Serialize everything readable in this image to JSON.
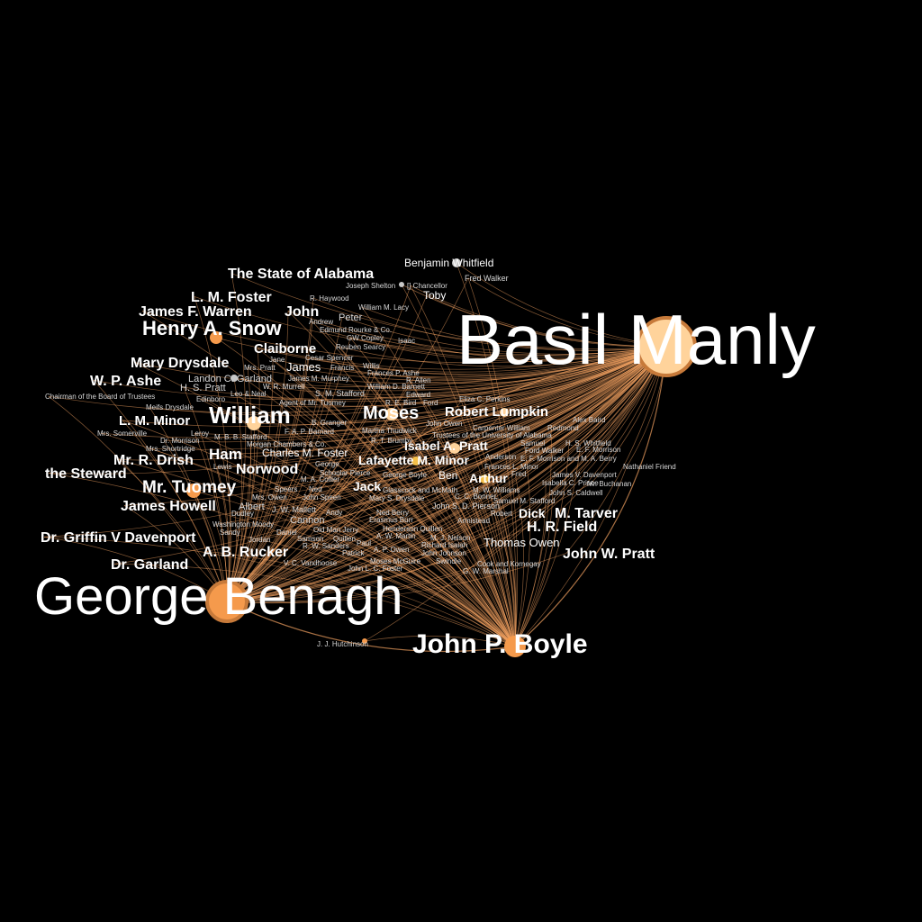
{
  "graph": {
    "colors": {
      "background": "#000000",
      "edge": "#f0a060",
      "node_orange": "#f59a4c",
      "node_peach": "#ffd39b",
      "node_gold": "#f5c04a",
      "node_gray": "#c8c8c8",
      "label": "#ffffff"
    },
    "hubs": [
      {
        "id": "basil_manly",
        "label": "Basil Manly"
      },
      {
        "id": "george_benagh",
        "label": "George Benagh"
      },
      {
        "id": "john_p_boyle",
        "label": "John P. Boyle"
      }
    ],
    "nodes": [
      {
        "id": "basil_manly",
        "label": "Basil Manly"
      },
      {
        "id": "george_benagh",
        "label": "George Benagh"
      },
      {
        "id": "john_p_boyle",
        "label": "John P. Boyle"
      },
      {
        "id": "william",
        "label": "William"
      },
      {
        "id": "henry_a_snow",
        "label": "Henry A. Snow"
      },
      {
        "id": "moses",
        "label": "Moses"
      },
      {
        "id": "robert_lumpkin",
        "label": "Robert Lumpkin"
      },
      {
        "id": "isabel_a_pratt",
        "label": "Isabel A. Pratt"
      },
      {
        "id": "mr_tuomey",
        "label": "Mr. Tuomey"
      },
      {
        "id": "james_howell",
        "label": "James Howell"
      },
      {
        "id": "the_steward",
        "label": "the Steward"
      },
      {
        "id": "mr_r_drish",
        "label": "Mr. R. Drish"
      },
      {
        "id": "ham",
        "label": "Ham"
      },
      {
        "id": "norwood",
        "label": "Norwood"
      },
      {
        "id": "l_m_minor",
        "label": "L. M. Minor"
      },
      {
        "id": "w_p_ashe",
        "label": "W. P. Ashe"
      },
      {
        "id": "mary_drysdale",
        "label": "Mary Drysdale"
      },
      {
        "id": "claiborne",
        "label": "Claiborne"
      },
      {
        "id": "l_m_foster",
        "label": "L. M. Foster"
      },
      {
        "id": "james_f_warren",
        "label": "James F. Warren"
      },
      {
        "id": "john",
        "label": "John"
      },
      {
        "id": "state_of_alabama",
        "label": "The State of Alabama"
      },
      {
        "id": "benjamin_whitfield",
        "label": "Benjamin Whitfield"
      },
      {
        "id": "fred_walker",
        "label": "Fred Walker"
      },
      {
        "id": "toby",
        "label": "Toby"
      },
      {
        "id": "joseph_shelton",
        "label": "Joseph Shelton"
      },
      {
        "id": "chancellor",
        "label": "[] Chancellor"
      },
      {
        "id": "r_haywood",
        "label": "R. Haywood"
      },
      {
        "id": "william_m_lacy",
        "label": "William M. Lacy"
      },
      {
        "id": "andrew",
        "label": "Andrew"
      },
      {
        "id": "peter",
        "label": "Peter"
      },
      {
        "id": "edmund_rourke",
        "label": "Edmund Rourke & Co."
      },
      {
        "id": "gw_copley",
        "label": "GW Copley"
      },
      {
        "id": "isaac",
        "label": "Isaac"
      },
      {
        "id": "reuben_searcy",
        "label": "Reuben Searcy"
      },
      {
        "id": "jane",
        "label": "Jane"
      },
      {
        "id": "cesar_spencer",
        "label": "Cesar Spencer"
      },
      {
        "id": "james",
        "label": "James"
      },
      {
        "id": "mrs_pratt",
        "label": "Mrs. Pratt"
      },
      {
        "id": "francis",
        "label": "Francis"
      },
      {
        "id": "willis",
        "label": "Willis"
      },
      {
        "id": "frances_p_ashe",
        "label": "Frances P. Ashe"
      },
      {
        "id": "landon_c_garland",
        "label": "Landon C. Garland"
      },
      {
        "id": "james_m_murphey",
        "label": "James M. Murphey"
      },
      {
        "id": "r_allen",
        "label": "R. Allen"
      },
      {
        "id": "h_s_pratt",
        "label": "H. S. Pratt"
      },
      {
        "id": "w_r_murrell",
        "label": "W. R. Murrell"
      },
      {
        "id": "william_barnett",
        "label": "William D. Barnett"
      },
      {
        "id": "chairman",
        "label": "Chairman of the Board of Trustees"
      },
      {
        "id": "leo_neal",
        "label": "Leo & Neal"
      },
      {
        "id": "s_m_stafford",
        "label": "S. M. Stafford"
      },
      {
        "id": "edward",
        "label": "Edward"
      },
      {
        "id": "edinboro",
        "label": "Edinboro"
      },
      {
        "id": "agent_tuomey",
        "label": "Agent of Mr. Tuomey"
      },
      {
        "id": "r_e_bird",
        "label": "R. E. Bird"
      },
      {
        "id": "ford",
        "label": "Ford"
      },
      {
        "id": "eliza_perkins",
        "label": "Eliza C. Perkins"
      },
      {
        "id": "meifs_drysdale",
        "label": "Meifs Drysdale"
      },
      {
        "id": "b_granger",
        "label": "B. Granger"
      },
      {
        "id": "john_owen",
        "label": "John Owen"
      },
      {
        "id": "alex_baird",
        "label": "Alex Baird"
      },
      {
        "id": "mrs_somerville",
        "label": "Mrs. Somerville"
      },
      {
        "id": "leroy",
        "label": "Leroy"
      },
      {
        "id": "m_b_stafford",
        "label": "M. B. B. Stafford"
      },
      {
        "id": "f_a_p_barnard",
        "label": "F. A. P. Barnard"
      },
      {
        "id": "martha_thudwick",
        "label": "Martha Thudwick"
      },
      {
        "id": "carpenter_william",
        "label": "Carpenter William"
      },
      {
        "id": "redmond",
        "label": "Redmond"
      },
      {
        "id": "trustees",
        "label": "Trustees of the University of Alabama"
      },
      {
        "id": "dr_morrison",
        "label": "Dr. Morrison"
      },
      {
        "id": "mrs_shortridge",
        "label": "Mrs. Shortridge"
      },
      {
        "id": "morgan_chambers",
        "label": "Morgan Chambers & Co."
      },
      {
        "id": "r_t_brumby",
        "label": "R. T. Brumby"
      },
      {
        "id": "samuel",
        "label": "Samuel"
      },
      {
        "id": "h_s_whitfield",
        "label": "H. S. Whitfield"
      },
      {
        "id": "ford_walker",
        "label": "Ford Walker"
      },
      {
        "id": "e_f_morrison",
        "label": "E. F. Morrison"
      },
      {
        "id": "lewis",
        "label": "Lewis"
      },
      {
        "id": "charles_m_foster",
        "label": "Charles M. Foster"
      },
      {
        "id": "lafayette_m_minor",
        "label": "Lafayette M. Minor"
      },
      {
        "id": "anderson",
        "label": "Anderson"
      },
      {
        "id": "morrison_berry",
        "label": "E. F. Morrison and M. A. Berry"
      },
      {
        "id": "nathaniel_friend",
        "label": "Nathaniel Friend"
      },
      {
        "id": "george",
        "label": "George"
      },
      {
        "id": "m_a_collier",
        "label": "M. A. Collier"
      },
      {
        "id": "schoolar_pierce",
        "label": "Schoolar Pierce"
      },
      {
        "id": "george_boyle",
        "label": "George Boyle"
      },
      {
        "id": "ben",
        "label": "Ben"
      },
      {
        "id": "frances_minor",
        "label": "Frances L. Minor"
      },
      {
        "id": "fred",
        "label": "Fred"
      },
      {
        "id": "james_v_davenport",
        "label": "James V. Davenport"
      },
      {
        "id": "arthur",
        "label": "Arthur"
      },
      {
        "id": "isabella_prince",
        "label": "Isabella C. Prince"
      },
      {
        "id": "mr_buchanan",
        "label": "Mr. Buchanan"
      },
      {
        "id": "jack",
        "label": "Jack"
      },
      {
        "id": "speers",
        "label": "Speers"
      },
      {
        "id": "ned",
        "label": "Ned"
      },
      {
        "id": "mrs_owen",
        "label": "Mrs. Owen"
      },
      {
        "id": "john_speen",
        "label": "John Speen"
      },
      {
        "id": "glasscock_mcmath",
        "label": "Glasscock and McMath"
      },
      {
        "id": "w_williams",
        "label": "M. W. Williams"
      },
      {
        "id": "john_s_caldwell",
        "label": "John S. Caldwell"
      },
      {
        "id": "mary_s_drysdale",
        "label": "Mary S. Drysdale"
      },
      {
        "id": "c_bonner",
        "label": "C. C. Bonner"
      },
      {
        "id": "samuel_m_stafford",
        "label": "Samuel M. Stafford"
      },
      {
        "id": "albert",
        "label": "Albert"
      },
      {
        "id": "j_w_mallett",
        "label": "J. W. Mallett"
      },
      {
        "id": "andy",
        "label": "Andy"
      },
      {
        "id": "ned_berry",
        "label": "Ned Berry"
      },
      {
        "id": "john_s_d_pierson",
        "label": "John S. D. Pierson"
      },
      {
        "id": "robert",
        "label": "Robert"
      },
      {
        "id": "dick",
        "label": "Dick"
      },
      {
        "id": "m_tarver",
        "label": "M. Tarver"
      },
      {
        "id": "dudley",
        "label": "Dudley"
      },
      {
        "id": "cannon",
        "label": "Cannon"
      },
      {
        "id": "erasmus_burr",
        "label": "Erasmus Burr"
      },
      {
        "id": "armistead",
        "label": "Armistead"
      },
      {
        "id": "washington_moody",
        "label": "Washington Moody"
      },
      {
        "id": "old_man_jerry",
        "label": "Old Man Jerry"
      },
      {
        "id": "henderson_quillen",
        "label": "Henderson Quillen"
      },
      {
        "id": "h_r_field",
        "label": "H. R. Field"
      },
      {
        "id": "sandy",
        "label": "Sandy"
      },
      {
        "id": "daniel",
        "label": "Daniel"
      },
      {
        "id": "w_martin",
        "label": "A. W. Martin"
      },
      {
        "id": "m_j_nelson",
        "label": "M. J. Nelson"
      },
      {
        "id": "dr_griffin_davenport",
        "label": "Dr. Griffin V Davenport"
      },
      {
        "id": "jordan",
        "label": "Jordan"
      },
      {
        "id": "samson",
        "label": "Samson"
      },
      {
        "id": "quillen",
        "label": "Quillen"
      },
      {
        "id": "thomas_owen",
        "label": "Thomas Owen"
      },
      {
        "id": "paul",
        "label": "Paul"
      },
      {
        "id": "richard_isaiah",
        "label": "Richard Isaiah"
      },
      {
        "id": "john_w_pratt",
        "label": "John W. Pratt"
      },
      {
        "id": "a_b_rucker",
        "label": "A. B. Rucker"
      },
      {
        "id": "r_w_sanders",
        "label": "R. W. Sanders"
      },
      {
        "id": "a_p_owen",
        "label": "A. P. Owen"
      },
      {
        "id": "patrick",
        "label": "Patrick"
      },
      {
        "id": "john_johnson",
        "label": "John Johnson"
      },
      {
        "id": "v_c_vandhoose",
        "label": "V. C. Vandhoose"
      },
      {
        "id": "moses_mcguire",
        "label": "Moses McGuire"
      },
      {
        "id": "swindle",
        "label": "Swindle"
      },
      {
        "id": "cook_kornegay",
        "label": "Cook and Kornegay"
      },
      {
        "id": "dr_garland",
        "label": "Dr. Garland"
      },
      {
        "id": "john_l_foster",
        "label": "John L. C. Foster"
      },
      {
        "id": "g_w_marshal",
        "label": "G. W. Marshal"
      },
      {
        "id": "j_j_hutchinson",
        "label": "J. J. Hutchinson"
      }
    ]
  }
}
